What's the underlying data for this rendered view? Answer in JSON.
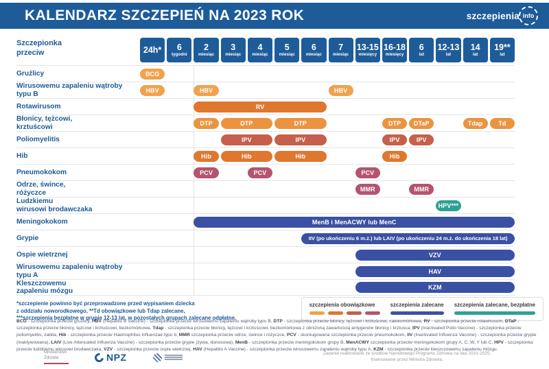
{
  "colors": {
    "light-orange": "#F0A24D",
    "orange": "#EA9440",
    "dark-orange": "#E0772F",
    "brick": "#C65F4B",
    "maroon": "#B4546F",
    "blue": "#3A51A3",
    "teal": "#2EA193",
    "header-blue": "#1E5C99",
    "label-blue": "#1D5A96"
  },
  "header": {
    "title": "KALENDARZ SZCZEPIEŃ NA 2023 ROK",
    "logo_text": "szczepienia",
    "logo_suffix": "info"
  },
  "chart_data": {
    "type": "table",
    "title": "KALENDARZ SZCZEPIEŃ NA 2023 ROK",
    "corner_label": "Szczepionka\nprzeciw",
    "columns": [
      {
        "value": "24h*",
        "unit": ""
      },
      {
        "value": "6",
        "unit": "tygodni"
      },
      {
        "value": "2",
        "unit": "miesiąc"
      },
      {
        "value": "3",
        "unit": "miesiąc"
      },
      {
        "value": "4",
        "unit": "miesiąc"
      },
      {
        "value": "5",
        "unit": "miesiąc"
      },
      {
        "value": "6",
        "unit": "miesiąc"
      },
      {
        "value": "7",
        "unit": "miesiąc"
      },
      {
        "value": "13-15",
        "unit": "miesięcy"
      },
      {
        "value": "16-18",
        "unit": "miesięcy"
      },
      {
        "value": "6",
        "unit": "lat"
      },
      {
        "value": "12-13",
        "unit": "lat"
      },
      {
        "value": "14",
        "unit": "lat"
      },
      {
        "value": "19**",
        "unit": "lat"
      }
    ],
    "rows": [
      {
        "label": "Gruźlicy",
        "items": [
          {
            "text": "BCG",
            "col": 1,
            "span": 1,
            "color": "light-orange"
          }
        ]
      },
      {
        "label": "Wirusowemu zapaleniu wątroby\ntypu B",
        "items": [
          {
            "text": "HBV",
            "col": 1,
            "span": 1,
            "color": "light-orange"
          },
          {
            "text": "HBV",
            "col": 3,
            "span": 1,
            "color": "light-orange"
          },
          {
            "text": "HBV",
            "col": 8,
            "span": 1,
            "color": "light-orange"
          }
        ]
      },
      {
        "label": "Rotawirusom",
        "items": [
          {
            "text": "RV",
            "col": 3,
            "span": 5,
            "color": "dark-orange"
          }
        ]
      },
      {
        "label": "Błonicy, tężcowi,\nkrztuścowi",
        "items": [
          {
            "text": "DTP",
            "col": 3,
            "span": 1,
            "color": "orange"
          },
          {
            "text": "DTP",
            "col": 4,
            "span": 2,
            "color": "orange"
          },
          {
            "text": "DTP",
            "col": 6,
            "span": 2,
            "color": "orange"
          },
          {
            "text": "DTP",
            "col": 10,
            "span": 1,
            "color": "orange"
          },
          {
            "text": "DTaP",
            "col": 11,
            "span": 1,
            "color": "orange"
          },
          {
            "text": "Tdap",
            "col": 13,
            "span": 1,
            "color": "orange"
          },
          {
            "text": "Td",
            "col": 14,
            "span": 1,
            "color": "orange"
          }
        ]
      },
      {
        "label": "Poliomyelitis",
        "items": [
          {
            "text": "IPV",
            "col": 4,
            "span": 2,
            "color": "brick"
          },
          {
            "text": "IPV",
            "col": 6,
            "span": 2,
            "color": "brick"
          },
          {
            "text": "IPV",
            "col": 10,
            "span": 1,
            "color": "brick"
          },
          {
            "text": "IPV",
            "col": 11,
            "span": 1,
            "color": "brick"
          }
        ]
      },
      {
        "label": "Hib",
        "items": [
          {
            "text": "Hib",
            "col": 3,
            "span": 1,
            "color": "dark-orange"
          },
          {
            "text": "Hib",
            "col": 4,
            "span": 2,
            "color": "dark-orange"
          },
          {
            "text": "Hib",
            "col": 6,
            "span": 2,
            "color": "dark-orange"
          },
          {
            "text": "Hib",
            "col": 10,
            "span": 1,
            "color": "dark-orange"
          }
        ]
      },
      {
        "label": "Pneumokokom",
        "items": [
          {
            "text": "PCV",
            "col": 3,
            "span": 1,
            "color": "maroon"
          },
          {
            "text": "PCV",
            "col": 5,
            "span": 1,
            "color": "maroon"
          },
          {
            "text": "PCV",
            "col": 9,
            "span": 1,
            "color": "maroon"
          }
        ]
      },
      {
        "label": "Odrze, śwince,\nróżyczce",
        "items": [
          {
            "text": "MMR",
            "col": 9,
            "span": 1,
            "color": "maroon"
          },
          {
            "text": "MMR",
            "col": 11,
            "span": 1,
            "color": "maroon"
          }
        ]
      },
      {
        "label": "Ludzkiemu\nwirusowi brodawczaka",
        "items": [
          {
            "text": "HPV***",
            "col": 12,
            "span": 1,
            "color": "teal"
          }
        ]
      },
      {
        "label": "Meningokokom",
        "items": [
          {
            "text": "MenB i MenACWY lub MenC",
            "col": 3,
            "span": 12,
            "color": "blue"
          }
        ]
      },
      {
        "label": "Grypie",
        "items": [
          {
            "text": "IIV (po ukończeniu 6 m.ż.) lub LAIV (po ukończeniu 24 m.ż. do ukończenia 18 lat)",
            "col": 7,
            "span": 8,
            "color": "blue"
          }
        ]
      },
      {
        "label": "Ospie wietrznej",
        "items": [
          {
            "text": "VZV",
            "col": 9,
            "span": 6,
            "color": "blue"
          }
        ]
      },
      {
        "label": "Wirusowemu zapaleniu wątroby\ntypu A",
        "items": [
          {
            "text": "HAV",
            "col": 9,
            "span": 6,
            "color": "blue"
          }
        ]
      },
      {
        "label": "Kleszczowemu\nzapaleniu mózgu",
        "items": [
          {
            "text": "KZM",
            "col": 9,
            "span": 6,
            "color": "blue"
          }
        ]
      }
    ]
  },
  "footnotes": [
    "*szczepienie powinno być przeprowadzone przed wypisaniem dziecka",
    "z oddziału noworodkowego, **Td obowiązkowe lub Tdap zalecane,",
    "***szczepienia bezpłatne w grupie 12-13 lat, w pozostałych grupach zalecane odpłatne."
  ],
  "legend": {
    "items": [
      {
        "label": "szczepienia obowiązkowe",
        "swatches": [
          "light-orange",
          "dark-orange",
          "brick",
          "maroon"
        ]
      },
      {
        "label": "szczepienia zalecane",
        "swatches": [
          "blue"
        ],
        "wide": true
      },
      {
        "label": "szczepienia zalecane, bezpłatne",
        "swatches": [
          "teal"
        ],
        "wide": true
      }
    ]
  },
  "abbreviations": {
    "entries": [
      [
        "BCG",
        "- szczepionka przeciw gruźlicy,"
      ],
      [
        "HBV",
        "(Hepatitis B Vaccine) - szczepionka przeciw wirusowemu zapaleniu wątroby typu B,"
      ],
      [
        "DTP",
        "- szczepionka przeciw błonicy, tężcowi i krztuścowi, całokomórkowa,"
      ],
      [
        "RV",
        "- szczepionka przeciw rotawirusom,"
      ],
      [
        "DTaP",
        "- szczepionka przeciw błonicy, tężcowi i krztuścowi, bezkomórkowa,"
      ],
      [
        "Tdap",
        "- szczepionka przeciw błonicy, tężcowi i krztuścowi, bezkomórkowa z obniżoną zawartością antygenów błonicy i krztuśca,"
      ],
      [
        "IPV",
        "(Inactivated Polio Vaccine) - szczepionka przeciw poliomyelitis, zabita,"
      ],
      [
        "Hib",
        "- szczepionka przeciw Haemophilus influenzae typu b,"
      ],
      [
        "MMR",
        "szczepionka przeciw odrze, śwince i różyczce,"
      ],
      [
        "PCV",
        "- skoniugowana szczepionka przeciw pneumokokom,"
      ],
      [
        "IIV",
        "(Inactivated Influenza Vaccine) - szczepionka przeciw grypie (inaktywowana),"
      ],
      [
        "LAIV",
        "(Live Attenuated Influenza Vaccine) - szczepionka przeciw grypie (żywa, donosowa),"
      ],
      [
        "MenB",
        "- szczepionka przeciw meningokokom grupy B,"
      ],
      [
        "MenACWY",
        "szczepionka przeciw meningokokom grupy A, C, W, Y lub C,"
      ],
      [
        "HPV",
        "- szczepionka przeciw ludzkiemu wirusowi brodawczaka,"
      ],
      [
        "VZV",
        "- szczepionka przeciw ospie wietrznej,"
      ],
      [
        "HAV",
        "(Hepatitis A Vaccine) - szczepionka przeciw wirusowemu zapaleniu wątroby typu A,"
      ],
      [
        "KZM",
        "- szczepionka przeciw kleszczowemu zapaleniu mózgu."
      ]
    ]
  },
  "footer": {
    "mz_label": "Ministerstwo\nZdrowia",
    "npz_label": "NPZ",
    "note": "Zadanie realizowane ze środków Narodowego Programu Zdrowia na lata 2021-2025,\nfinansowane przez Ministra Zdrowia."
  }
}
